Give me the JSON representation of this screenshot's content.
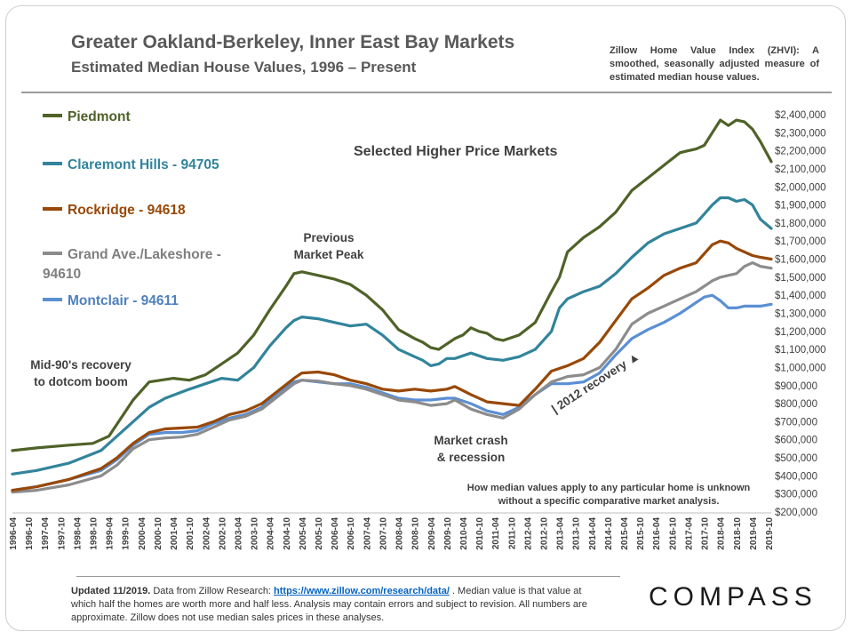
{
  "header": {
    "title": "Greater Oakland-Berkeley, Inner East Bay Markets",
    "subtitle": "Estimated Median House Values, 1996 – Present",
    "zhvi_note": "Zillow Home Value Index (ZHVI): A smoothed, seasonally adjusted measure of estimated median house values."
  },
  "annotations": {
    "panel_label": "Selected Higher Price Markets",
    "previous_peak_1": "Previous",
    "previous_peak_2": "Market Peak",
    "mid90s_1": "Mid-90's recovery",
    "mid90s_2": "to dotcom boom",
    "crash_1": "Market crash",
    "crash_2": "& recession",
    "recovery": "| 2012 recovery ▲",
    "bottom_note": "How median values apply to any particular home is unknown without a specific comparative market analysis."
  },
  "footer": {
    "updated": "Updated 11/2019.",
    "text_a": " Data from Zillow Research: ",
    "link": "https://www.zillow.com/research/data/",
    "text_b": " . Median value is that value at which half the homes are worth more and half less. Analysis may contain errors and subject to revision. All numbers are approximate. Zillow does not use median sales prices in these analyses."
  },
  "brand": "COMPASS",
  "colors": {
    "piedmont": "#4f6228",
    "claremont": "#31849b",
    "rockridge": "#984807",
    "grand": "#8c8c8c",
    "montclair": "#5b8fd4"
  },
  "chart_data": {
    "type": "line",
    "title": "Greater Oakland-Berkeley, Inner East Bay Markets",
    "subtitle": "Estimated Median House Values, 1996 – Present",
    "xlabel": "",
    "ylabel": "",
    "x_range": [
      1996.25,
      2019.8333
    ],
    "ylim": [
      200000,
      2400000
    ],
    "y_ticks": [
      200000,
      300000,
      400000,
      500000,
      600000,
      700000,
      800000,
      900000,
      1000000,
      1100000,
      1200000,
      1300000,
      1400000,
      1500000,
      1600000,
      1700000,
      1800000,
      1900000,
      2000000,
      2100000,
      2200000,
      2300000,
      2400000
    ],
    "y_tick_labels": [
      "$200,000",
      "$300,000",
      "$400,000",
      "$500,000",
      "$600,000",
      "$700,000",
      "$800,000",
      "$900,000",
      "$1,000,000",
      "$1,100,000",
      "$1,200,000",
      "$1,300,000",
      "$1,400,000",
      "$1,500,000",
      "$1,600,000",
      "$1,700,000",
      "$1,800,000",
      "$1,900,000",
      "$2,000,000",
      "$2,100,000",
      "$2,200,000",
      "$2,300,000",
      "$2,400,000"
    ],
    "x_tick_labels": [
      "1996-04",
      "1996-10",
      "1997-04",
      "1997-10",
      "1998-04",
      "1998-10",
      "1999-04",
      "1999-10",
      "2000-04",
      "2000-10",
      "2001-04",
      "2001-10",
      "2002-04",
      "2002-10",
      "2003-04",
      "2003-10",
      "2004-04",
      "2004-10",
      "2005-04",
      "2005-10",
      "2006-04",
      "2006-10",
      "2007-04",
      "2007-10",
      "2008-04",
      "2008-10",
      "2009-04",
      "2009-10",
      "2010-04",
      "2010-10",
      "2011-04",
      "2011-10",
      "2012-04",
      "2012-10",
      "2013-04",
      "2013-10",
      "2014-04",
      "2014-10",
      "2015-04",
      "2015-10",
      "2016-04",
      "2016-10",
      "2017-04",
      "2017-10",
      "2018-04",
      "2018-10",
      "2019-04",
      "2019-10"
    ],
    "grid": false,
    "legend_position": "left",
    "series": [
      {
        "name": "Piedmont",
        "color": "#4f6228",
        "x": [
          1996.25,
          1997.0,
          1998.0,
          1998.75,
          1999.25,
          2000.0,
          2000.5,
          2001.25,
          2001.75,
          2002.25,
          2002.75,
          2003.25,
          2003.75,
          2004.25,
          2004.75,
          2005.0,
          2005.25,
          2005.75,
          2006.25,
          2006.75,
          2007.25,
          2007.75,
          2008.25,
          2008.75,
          2009.0,
          2009.25,
          2009.5,
          2010.0,
          2010.25,
          2010.5,
          2010.75,
          2011.0,
          2011.25,
          2011.5,
          2012.0,
          2012.5,
          2013.0,
          2013.25,
          2013.5,
          2014.0,
          2014.5,
          2015.0,
          2015.5,
          2016.0,
          2016.5,
          2017.0,
          2017.25,
          2017.5,
          2017.75,
          2018.0,
          2018.25,
          2018.5,
          2018.75,
          2019.0,
          2019.25,
          2019.5,
          2019.8333
        ],
        "y": [
          540000,
          555000,
          570000,
          580000,
          620000,
          820000,
          920000,
          940000,
          930000,
          960000,
          1020000,
          1080000,
          1180000,
          1320000,
          1450000,
          1520000,
          1530000,
          1510000,
          1490000,
          1460000,
          1400000,
          1320000,
          1210000,
          1160000,
          1140000,
          1110000,
          1100000,
          1160000,
          1180000,
          1220000,
          1200000,
          1190000,
          1160000,
          1150000,
          1180000,
          1250000,
          1420000,
          1500000,
          1640000,
          1720000,
          1780000,
          1860000,
          1980000,
          2050000,
          2120000,
          2190000,
          2200000,
          2210000,
          2230000,
          2300000,
          2370000,
          2340000,
          2370000,
          2360000,
          2320000,
          2250000,
          2140000
        ]
      },
      {
        "name": "Claremont Hills - 94705",
        "color": "#31849b",
        "x": [
          1996.25,
          1997.0,
          1998.0,
          1999.0,
          2000.0,
          2000.5,
          2001.0,
          2001.75,
          2002.25,
          2002.75,
          2003.25,
          2003.75,
          2004.25,
          2004.75,
          2005.0,
          2005.25,
          2005.75,
          2006.25,
          2006.75,
          2007.25,
          2007.75,
          2008.25,
          2008.75,
          2009.0,
          2009.25,
          2009.5,
          2009.75,
          2010.0,
          2010.5,
          2011.0,
          2011.5,
          2012.0,
          2012.5,
          2013.0,
          2013.25,
          2013.5,
          2014.0,
          2014.5,
          2015.0,
          2015.5,
          2016.0,
          2016.5,
          2017.0,
          2017.5,
          2017.75,
          2018.0,
          2018.25,
          2018.5,
          2018.75,
          2019.0,
          2019.25,
          2019.5,
          2019.8333
        ],
        "y": [
          410000,
          430000,
          470000,
          540000,
          700000,
          780000,
          830000,
          880000,
          910000,
          940000,
          930000,
          1000000,
          1120000,
          1220000,
          1260000,
          1280000,
          1270000,
          1250000,
          1230000,
          1240000,
          1180000,
          1100000,
          1060000,
          1040000,
          1010000,
          1020000,
          1050000,
          1050000,
          1080000,
          1050000,
          1040000,
          1060000,
          1100000,
          1200000,
          1330000,
          1380000,
          1420000,
          1450000,
          1520000,
          1610000,
          1690000,
          1740000,
          1770000,
          1800000,
          1850000,
          1900000,
          1940000,
          1940000,
          1920000,
          1930000,
          1900000,
          1820000,
          1770000
        ]
      },
      {
        "name": "Rockridge - 94618",
        "color": "#984807",
        "x": [
          1996.25,
          1997.0,
          1998.0,
          1999.0,
          1999.5,
          2000.0,
          2000.5,
          2001.0,
          2001.5,
          2002.0,
          2002.5,
          2003.0,
          2003.5,
          2004.0,
          2004.5,
          2005.0,
          2005.25,
          2005.75,
          2006.25,
          2006.75,
          2007.25,
          2007.75,
          2008.25,
          2008.75,
          2009.25,
          2009.75,
          2010.0,
          2010.5,
          2011.0,
          2011.5,
          2012.0,
          2012.5,
          2013.0,
          2013.5,
          2014.0,
          2014.5,
          2015.0,
          2015.5,
          2016.0,
          2016.5,
          2017.0,
          2017.5,
          2017.75,
          2018.0,
          2018.25,
          2018.5,
          2018.75,
          2019.0,
          2019.25,
          2019.5,
          2019.8333
        ],
        "y": [
          320000,
          340000,
          380000,
          440000,
          500000,
          580000,
          640000,
          660000,
          665000,
          670000,
          700000,
          740000,
          760000,
          800000,
          870000,
          940000,
          970000,
          975000,
          960000,
          930000,
          910000,
          880000,
          870000,
          880000,
          870000,
          880000,
          895000,
          850000,
          810000,
          800000,
          790000,
          880000,
          980000,
          1010000,
          1050000,
          1140000,
          1260000,
          1380000,
          1440000,
          1510000,
          1550000,
          1580000,
          1630000,
          1680000,
          1700000,
          1690000,
          1660000,
          1640000,
          1620000,
          1610000,
          1600000
        ]
      },
      {
        "name": "Grand Ave./Lakeshore - 94610",
        "color": "#8c8c8c",
        "x": [
          1996.25,
          1997.0,
          1998.0,
          1999.0,
          1999.5,
          2000.0,
          2000.5,
          2001.0,
          2001.5,
          2002.0,
          2002.5,
          2003.0,
          2003.5,
          2004.0,
          2004.5,
          2005.0,
          2005.25,
          2005.75,
          2006.25,
          2006.75,
          2007.25,
          2007.75,
          2008.25,
          2008.75,
          2009.25,
          2009.75,
          2010.0,
          2010.5,
          2011.0,
          2011.5,
          2012.0,
          2012.5,
          2013.0,
          2013.5,
          2014.0,
          2014.5,
          2015.0,
          2015.5,
          2016.0,
          2016.5,
          2017.0,
          2017.5,
          2017.75,
          2018.0,
          2018.25,
          2018.5,
          2018.75,
          2019.0,
          2019.25,
          2019.5,
          2019.8333
        ],
        "y": [
          310000,
          320000,
          350000,
          400000,
          460000,
          550000,
          600000,
          610000,
          615000,
          630000,
          670000,
          710000,
          730000,
          770000,
          840000,
          910000,
          930000,
          925000,
          910000,
          900000,
          880000,
          850000,
          820000,
          810000,
          790000,
          800000,
          820000,
          770000,
          740000,
          720000,
          770000,
          850000,
          920000,
          950000,
          960000,
          1000000,
          1100000,
          1240000,
          1300000,
          1340000,
          1380000,
          1420000,
          1450000,
          1480000,
          1500000,
          1510000,
          1520000,
          1560000,
          1580000,
          1560000,
          1550000
        ]
      },
      {
        "name": "Montclair - 94611",
        "color": "#5b8fd4",
        "x": [
          1996.25,
          1997.0,
          1998.0,
          1999.0,
          1999.5,
          2000.0,
          2000.5,
          2001.0,
          2001.5,
          2002.0,
          2002.5,
          2003.0,
          2003.5,
          2004.0,
          2004.5,
          2005.0,
          2005.25,
          2005.75,
          2006.25,
          2006.75,
          2007.25,
          2007.75,
          2008.25,
          2008.75,
          2009.25,
          2009.75,
          2010.0,
          2010.5,
          2011.0,
          2011.5,
          2012.0,
          2012.5,
          2013.0,
          2013.5,
          2014.0,
          2014.5,
          2015.0,
          2015.5,
          2016.0,
          2016.5,
          2017.0,
          2017.5,
          2017.75,
          2018.0,
          2018.25,
          2018.5,
          2018.75,
          2019.0,
          2019.25,
          2019.5,
          2019.8333
        ],
        "y": [
          320000,
          340000,
          380000,
          430000,
          490000,
          570000,
          630000,
          640000,
          640000,
          650000,
          690000,
          720000,
          740000,
          780000,
          860000,
          920000,
          930000,
          920000,
          910000,
          910000,
          890000,
          860000,
          830000,
          820000,
          820000,
          830000,
          830000,
          800000,
          760000,
          740000,
          780000,
          850000,
          910000,
          910000,
          920000,
          970000,
          1070000,
          1160000,
          1210000,
          1250000,
          1300000,
          1360000,
          1390000,
          1400000,
          1370000,
          1330000,
          1330000,
          1340000,
          1340000,
          1340000,
          1350000
        ]
      }
    ]
  }
}
